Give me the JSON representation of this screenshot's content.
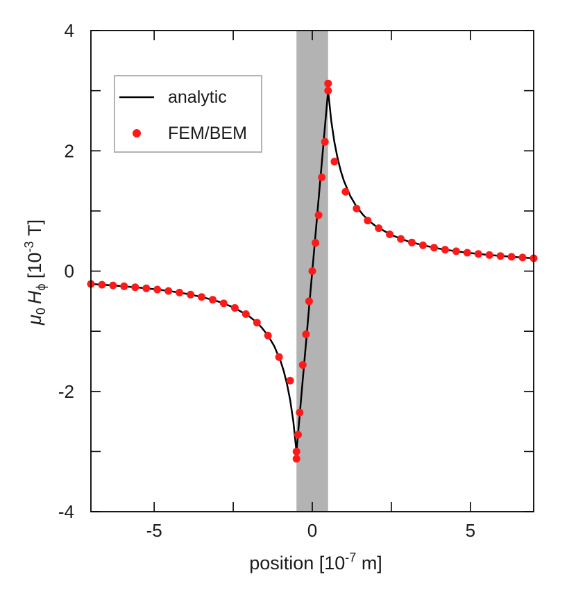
{
  "chart_data": {
    "type": "line",
    "title": "",
    "xlabel": "position [10",
    "xlabel_sup": "-7",
    "xlabel_tail": " m]",
    "ylabel_mu": "μ",
    "ylabel_sub0": "0",
    "ylabel_H": "H",
    "ylabel_subphi": "ϕ",
    "ylabel_unit": " [10",
    "ylabel_sup": "-3",
    "ylabel_tail": " T]",
    "xlim": [
      -7,
      7
    ],
    "ylim": [
      -4,
      4
    ],
    "x_ticks": [
      -5,
      0,
      5
    ],
    "y_ticks": [
      -4,
      -2,
      0,
      2,
      4
    ],
    "x_minor_ticks": [
      -2.5,
      2.5
    ],
    "y_minor_ticks": [
      -3,
      -1,
      1,
      3
    ],
    "grid": false,
    "shaded_region": {
      "x": [
        -0.5,
        0.5
      ],
      "color": "#b3b3b3"
    },
    "legend": {
      "placement": "top-left",
      "entries": [
        "analytic",
        "FEM/BEM"
      ]
    },
    "series": [
      {
        "name": "analytic",
        "kind": "line",
        "color": "#000000",
        "x": [
          -7.0,
          -6.5,
          -6.0,
          -5.5,
          -5.0,
          -4.5,
          -4.0,
          -3.5,
          -3.0,
          -2.5,
          -2.0,
          -1.8,
          -1.6,
          -1.4,
          -1.2,
          -1.0,
          -0.9,
          -0.8,
          -0.7,
          -0.6,
          -0.5,
          -0.4,
          -0.3,
          -0.2,
          -0.1,
          0.0,
          0.1,
          0.2,
          0.3,
          0.4,
          0.5,
          0.6,
          0.7,
          0.8,
          0.9,
          1.0,
          1.2,
          1.4,
          1.6,
          1.8,
          2.0,
          2.5,
          3.0,
          3.5,
          4.0,
          4.5,
          5.0,
          5.5,
          6.0,
          6.5,
          7.0
        ],
        "y": [
          -0.214,
          -0.231,
          -0.25,
          -0.273,
          -0.3,
          -0.333,
          -0.375,
          -0.429,
          -0.5,
          -0.6,
          -0.75,
          -0.833,
          -0.938,
          -1.071,
          -1.25,
          -1.5,
          -1.667,
          -1.875,
          -2.143,
          -2.5,
          -3.0,
          -2.4,
          -1.8,
          -1.2,
          -0.6,
          0.0,
          0.6,
          1.2,
          1.8,
          2.4,
          3.0,
          2.5,
          2.143,
          1.875,
          1.667,
          1.5,
          1.25,
          1.071,
          0.938,
          0.833,
          0.75,
          0.6,
          0.5,
          0.429,
          0.375,
          0.333,
          0.3,
          0.273,
          0.25,
          0.231,
          0.214
        ]
      },
      {
        "name": "FEM/BEM",
        "kind": "scatter",
        "color": "#ff1a1a",
        "x": [
          -7.0,
          -6.65,
          -6.3,
          -5.95,
          -5.6,
          -5.25,
          -4.9,
          -4.55,
          -4.2,
          -3.85,
          -3.5,
          -3.15,
          -2.8,
          -2.45,
          -2.1,
          -1.75,
          -1.4,
          -1.05,
          -0.7,
          -0.5,
          -0.5,
          -0.45,
          -0.4,
          -0.3,
          -0.2,
          -0.1,
          0.0,
          0.1,
          0.2,
          0.3,
          0.4,
          0.5,
          0.5,
          0.7,
          1.05,
          1.4,
          1.75,
          2.1,
          2.45,
          2.8,
          3.15,
          3.5,
          3.85,
          4.2,
          4.55,
          4.9,
          5.25,
          5.6,
          5.95,
          6.3,
          6.65,
          7.0
        ],
        "y": [
          -0.214,
          -0.226,
          -0.238,
          -0.252,
          -0.268,
          -0.286,
          -0.306,
          -0.33,
          -0.357,
          -0.39,
          -0.429,
          -0.476,
          -0.536,
          -0.612,
          -0.714,
          -0.857,
          -1.071,
          -1.429,
          -1.82,
          -3.12,
          -3.0,
          -2.72,
          -2.35,
          -1.56,
          -1.05,
          -0.5,
          0.0,
          0.47,
          0.93,
          1.56,
          2.15,
          3.12,
          3.0,
          1.82,
          1.32,
          1.04,
          0.84,
          0.714,
          0.612,
          0.536,
          0.476,
          0.429,
          0.39,
          0.357,
          0.33,
          0.306,
          0.286,
          0.268,
          0.252,
          0.238,
          0.226,
          0.214
        ]
      }
    ]
  }
}
